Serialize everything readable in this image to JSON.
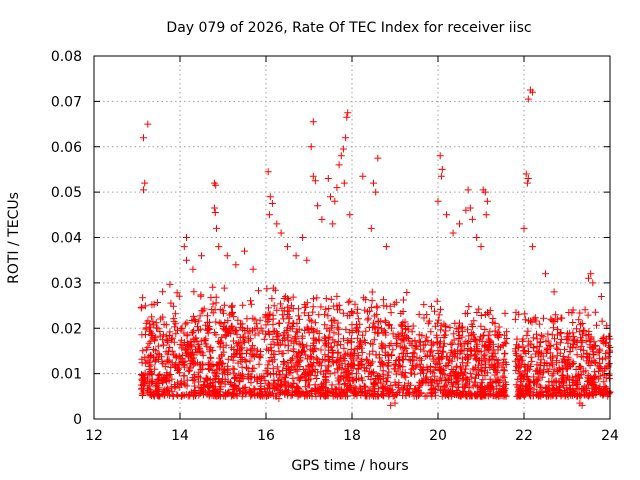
{
  "chart_data": {
    "type": "scatter",
    "title": "Day 079 of 2026, Rate Of TEC Index for receiver iisc",
    "xlabel": "GPS time / hours",
    "ylabel": "ROTI / TECUs",
    "xlim": [
      12,
      24
    ],
    "ylim": [
      0,
      0.08
    ],
    "xticks": [
      12,
      14,
      16,
      18,
      20,
      22,
      24
    ],
    "yticks": [
      0,
      0.01,
      0.02,
      0.03,
      0.04,
      0.05,
      0.06,
      0.07,
      0.08
    ],
    "xtick_labels": [
      "12",
      "14",
      "16",
      "18",
      "20",
      "22",
      "24"
    ],
    "ytick_labels": [
      "0",
      "0.01",
      "0.02",
      "0.03",
      "0.04",
      "0.05",
      "0.06",
      "0.07",
      "0.08"
    ],
    "grid": true,
    "marker": "+",
    "color": "#ff0000",
    "series": [
      {
        "name": "ROTI",
        "points": [
          [
            13.15,
            0.062
          ],
          [
            13.25,
            0.065
          ],
          [
            13.18,
            0.052
          ],
          [
            13.15,
            0.0505
          ],
          [
            14.15,
            0.04
          ],
          [
            14.1,
            0.038
          ],
          [
            14.15,
            0.035
          ],
          [
            14.3,
            0.033
          ],
          [
            14.5,
            0.036
          ],
          [
            14.8,
            0.052
          ],
          [
            14.83,
            0.0515
          ],
          [
            14.8,
            0.0465
          ],
          [
            14.82,
            0.0455
          ],
          [
            14.85,
            0.042
          ],
          [
            14.9,
            0.038
          ],
          [
            15.1,
            0.036
          ],
          [
            15.3,
            0.034
          ],
          [
            15.5,
            0.037
          ],
          [
            15.7,
            0.033
          ],
          [
            16.05,
            0.0545
          ],
          [
            16.1,
            0.049
          ],
          [
            16.15,
            0.0475
          ],
          [
            16.08,
            0.045
          ],
          [
            16.25,
            0.043
          ],
          [
            16.35,
            0.041
          ],
          [
            16.5,
            0.038
          ],
          [
            16.7,
            0.036
          ],
          [
            16.85,
            0.04
          ],
          [
            16.95,
            0.035
          ],
          [
            17.05,
            0.06
          ],
          [
            17.1,
            0.0535
          ],
          [
            17.15,
            0.0525
          ],
          [
            17.2,
            0.047
          ],
          [
            17.3,
            0.044
          ],
          [
            17.45,
            0.053
          ],
          [
            17.5,
            0.049
          ],
          [
            17.1,
            0.0655
          ],
          [
            17.55,
            0.043
          ],
          [
            17.6,
            0.048
          ],
          [
            17.65,
            0.051
          ],
          [
            17.7,
            0.056
          ],
          [
            17.75,
            0.058
          ],
          [
            17.8,
            0.0595
          ],
          [
            17.85,
            0.062
          ],
          [
            17.88,
            0.0665
          ],
          [
            17.9,
            0.0675
          ],
          [
            17.82,
            0.052
          ],
          [
            17.95,
            0.045
          ],
          [
            18.25,
            0.0535
          ],
          [
            18.5,
            0.052
          ],
          [
            18.55,
            0.05
          ],
          [
            18.6,
            0.0575
          ],
          [
            18.45,
            0.042
          ],
          [
            18.8,
            0.038
          ],
          [
            20.05,
            0.058
          ],
          [
            20.1,
            0.055
          ],
          [
            20.08,
            0.0535
          ],
          [
            20.0,
            0.048
          ],
          [
            20.2,
            0.045
          ],
          [
            20.35,
            0.041
          ],
          [
            20.5,
            0.043
          ],
          [
            20.7,
            0.0505
          ],
          [
            20.75,
            0.0465
          ],
          [
            20.8,
            0.044
          ],
          [
            20.65,
            0.046
          ],
          [
            20.9,
            0.04
          ],
          [
            21.05,
            0.0505
          ],
          [
            21.1,
            0.05
          ],
          [
            21.15,
            0.048
          ],
          [
            21.12,
            0.045
          ],
          [
            21.0,
            0.038
          ],
          [
            22.05,
            0.054
          ],
          [
            22.1,
            0.053
          ],
          [
            22.08,
            0.052
          ],
          [
            22.1,
            0.0705
          ],
          [
            22.15,
            0.0725
          ],
          [
            22.2,
            0.072
          ],
          [
            22.0,
            0.042
          ],
          [
            22.2,
            0.038
          ],
          [
            22.5,
            0.032
          ],
          [
            22.7,
            0.028
          ],
          [
            23.5,
            0.031
          ],
          [
            23.55,
            0.032
          ],
          [
            23.6,
            0.03
          ],
          [
            23.8,
            0.027
          ],
          [
            23.3,
            0.0035
          ],
          [
            23.35,
            0.003
          ],
          [
            18.9,
            0.003
          ],
          [
            19.0,
            0.0035
          ],
          [
            13.4,
            0.005
          ],
          [
            16.3,
            0.0045
          ]
        ],
        "dense_segments": [
          {
            "x_from": 13.1,
            "x_to": 19.3,
            "y_min": 0.005,
            "y_max": 0.03
          },
          {
            "x_from": 19.3,
            "x_to": 21.6,
            "y_min": 0.005,
            "y_max": 0.026
          },
          {
            "x_from": 21.8,
            "x_to": 24.0,
            "y_min": 0.005,
            "y_max": 0.025
          }
        ]
      }
    ]
  }
}
